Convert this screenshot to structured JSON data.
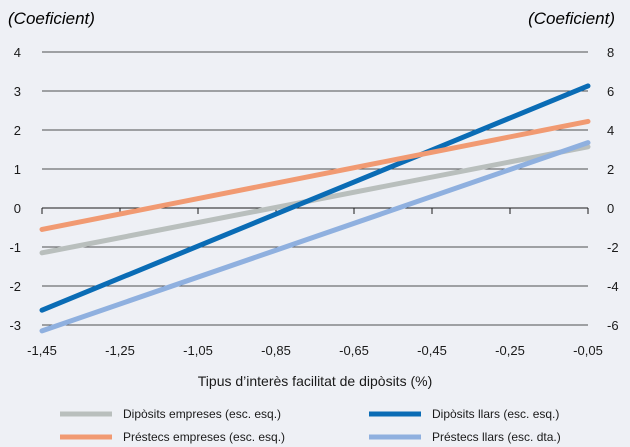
{
  "chart_data": {
    "type": "line",
    "left_axis_unit": "(Coeficient)",
    "right_axis_unit": "(Coeficient)",
    "xlabel": "Tipus d’interès facilitat de dipòsits (%)",
    "x_ticks": [
      "-1,45",
      "-1,25",
      "-1,05",
      "-0,85",
      "-0,65",
      "-0,45",
      "-0,25",
      "-0,05"
    ],
    "x_tick_values": [
      -1.45,
      -1.25,
      -1.05,
      -0.85,
      -0.65,
      -0.45,
      -0.25,
      -0.05
    ],
    "xlim": [
      -1.45,
      -0.05
    ],
    "left_ylim": [
      -3,
      4
    ],
    "left_ticks": [
      "-3",
      "-2",
      "-1",
      "0",
      "1",
      "2",
      "3",
      "4"
    ],
    "left_tick_values": [
      -3,
      -2,
      -1,
      0,
      1,
      2,
      3,
      4
    ],
    "right_ylim": [
      -6,
      8
    ],
    "right_ticks": [
      "-6",
      "-4",
      "-2",
      "0",
      "2",
      "4",
      "6",
      "8"
    ],
    "right_tick_values": [
      -6,
      -4,
      -2,
      0,
      2,
      4,
      6,
      8
    ],
    "grid": true,
    "legend_position": "bottom",
    "series": [
      {
        "name": "Dipòsits empreses (esc. esq.)",
        "axis": "left",
        "color": "#b9bfbd",
        "x": [
          -1.45,
          -0.05
        ],
        "y": [
          -1.15,
          1.57
        ]
      },
      {
        "name": "Dipòsits llars (esc. esq.)",
        "axis": "left",
        "color": "#0a6cb5",
        "x": [
          -1.45,
          -0.05
        ],
        "y": [
          -2.62,
          3.13
        ]
      },
      {
        "name": "Préstecs empreses (esc. esq.)",
        "axis": "left",
        "color": "#f19a72",
        "x": [
          -1.45,
          -0.05
        ],
        "y": [
          -0.55,
          2.22
        ]
      },
      {
        "name": "Préstecs llars (esc. dta.)",
        "axis": "right",
        "color": "#8fb0df",
        "x": [
          -1.45,
          -0.05
        ],
        "y": [
          -6.3,
          3.35
        ]
      }
    ]
  }
}
